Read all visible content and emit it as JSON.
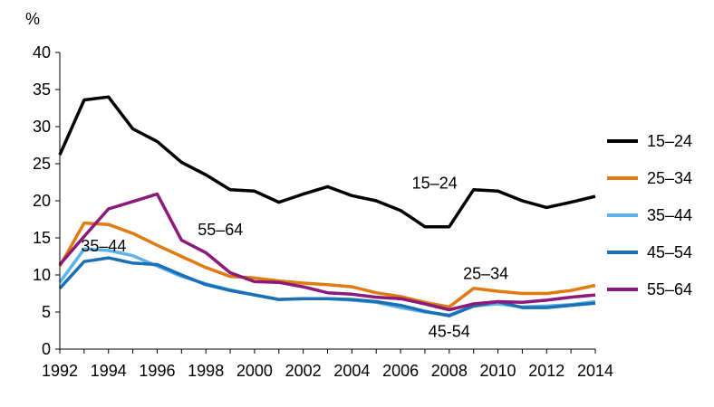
{
  "chart_data": {
    "type": "line",
    "y_unit": "%",
    "ylim": [
      0,
      40
    ],
    "y_ticks": [
      0,
      5,
      10,
      15,
      20,
      25,
      30,
      35,
      40
    ],
    "xlim": [
      1992,
      2014
    ],
    "x_tick_labels": [
      "1992",
      "1994",
      "1996",
      "1998",
      "2000",
      "2002",
      "2004",
      "2006",
      "2008",
      "2010",
      "2012",
      "2014"
    ],
    "grid": false,
    "legend_position": "right",
    "x": [
      1992,
      1993,
      1994,
      1995,
      1996,
      1997,
      1998,
      1999,
      2000,
      2001,
      2002,
      2003,
      2004,
      2005,
      2006,
      2007,
      2008,
      2009,
      2010,
      2011,
      2012,
      2013,
      2014
    ],
    "series": [
      {
        "name": "15–24",
        "color": "#000000",
        "values": [
          26.2,
          33.6,
          34.0,
          29.7,
          28.0,
          25.2,
          23.5,
          21.5,
          21.3,
          19.8,
          20.9,
          21.9,
          20.7,
          20.0,
          18.7,
          16.5,
          16.5,
          21.5,
          21.3,
          20.0,
          19.1,
          19.8,
          20.6
        ]
      },
      {
        "name": "25–34",
        "color": "#e07b10",
        "values": [
          11.2,
          17.0,
          16.8,
          15.6,
          14.0,
          12.5,
          11.0,
          9.8,
          9.6,
          9.2,
          8.9,
          8.7,
          8.4,
          7.6,
          7.1,
          6.3,
          5.7,
          8.2,
          7.8,
          7.5,
          7.5,
          7.9,
          8.6
        ]
      },
      {
        "name": "35–44",
        "color": "#5cb3e8",
        "values": [
          9.0,
          13.5,
          13.3,
          12.6,
          11.2,
          9.8,
          8.8,
          8.0,
          7.3,
          6.7,
          6.8,
          6.8,
          6.6,
          6.3,
          5.6,
          5.0,
          4.6,
          5.8,
          6.1,
          5.7,
          5.8,
          6.0,
          6.4
        ]
      },
      {
        "name": "45–54",
        "color": "#1b6fb5",
        "values": [
          8.2,
          11.8,
          12.3,
          11.6,
          11.4,
          10.0,
          8.7,
          7.9,
          7.3,
          6.7,
          6.8,
          6.8,
          6.7,
          6.4,
          5.9,
          5.1,
          4.5,
          5.8,
          6.4,
          5.6,
          5.6,
          5.9,
          6.2
        ]
      },
      {
        "name": "55–64",
        "color": "#8c1a7a",
        "values": [
          11.4,
          15.2,
          18.9,
          19.9,
          20.9,
          14.7,
          13.0,
          10.3,
          9.1,
          9.0,
          8.4,
          7.6,
          7.4,
          7.0,
          6.8,
          6.1,
          5.3,
          6.1,
          6.4,
          6.3,
          6.6,
          7.0,
          7.3
        ]
      }
    ],
    "annotations": [
      {
        "text": "15–24",
        "x": 2007.4,
        "y": 22.4
      },
      {
        "text": "55–64",
        "x": 1998.6,
        "y": 16.1
      },
      {
        "text": "35–44",
        "x": 1993.8,
        "y": 13.9
      },
      {
        "text": "25–34",
        "x": 2009.5,
        "y": 10.2
      },
      {
        "text": "45-54",
        "x": 2008.0,
        "y": 2.4
      }
    ]
  }
}
